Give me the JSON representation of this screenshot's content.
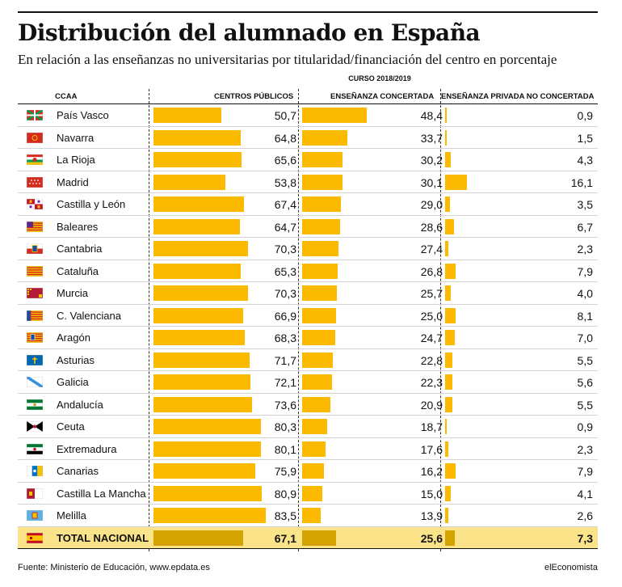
{
  "title": "Distribución del alumnado en España",
  "subtitle": "En relación a las enseñanzas no universitarias por titularidad/financiación del centro en porcentaje",
  "course": "CURSO 2018/2019",
  "footer": {
    "source": "Fuente: Ministerio de Educación, www.epdata.es",
    "brand": "elEconomista"
  },
  "colors": {
    "bar": "#fbba00",
    "total_bar": "#d4a300",
    "total_row": "#fbe38a"
  },
  "chart_data": {
    "type": "bar",
    "title": "Distribución del alumnado en España",
    "category_header": "CCAA",
    "categories": [
      "País Vasco",
      "Navarra",
      "La Rioja",
      "Madrid",
      "Castilla y León",
      "Baleares",
      "Cantabria",
      "Cataluña",
      "Murcia",
      "C. Valenciana",
      "Aragón",
      "Asturias",
      "Galicia",
      "Andalucía",
      "Ceuta",
      "Extremadura",
      "Canarias",
      "Castilla La Mancha",
      "Melilla",
      "TOTAL NACIONAL"
    ],
    "series": [
      {
        "name": "CENTROS PÚBLICOS",
        "values": [
          50.7,
          64.8,
          65.6,
          53.8,
          67.4,
          64.7,
          70.3,
          65.3,
          70.3,
          66.9,
          68.3,
          71.7,
          72.1,
          73.6,
          80.3,
          80.1,
          75.9,
          80.9,
          83.5,
          67.1
        ]
      },
      {
        "name": "ENSEÑANZA CONCERTADA",
        "values": [
          48.4,
          33.7,
          30.2,
          30.1,
          29.0,
          28.6,
          27.4,
          26.8,
          25.7,
          25.0,
          24.7,
          22.8,
          22.3,
          20.9,
          18.7,
          17.6,
          16.2,
          15.0,
          13.9,
          25.6
        ]
      },
      {
        "name": "ENSEÑANZA PRIVADA NO CONCERTADA",
        "values": [
          0.9,
          1.5,
          4.3,
          16.1,
          3.5,
          6.7,
          2.3,
          7.9,
          4.0,
          8.1,
          7.0,
          5.5,
          5.6,
          5.5,
          0.9,
          2.3,
          7.9,
          4.1,
          2.6,
          7.3
        ]
      }
    ],
    "value_labels": [
      [
        "50,7",
        "64,8",
        "65,6",
        "53,8",
        "67,4",
        "64,7",
        "70,3",
        "65,3",
        "70,3",
        "66,9",
        "68,3",
        "71,7",
        "72,1",
        "73,6",
        "80,3",
        "80,1",
        "75,9",
        "80,9",
        "83,5",
        "67,1"
      ],
      [
        "48,4",
        "33,7",
        "30,2",
        "30,1",
        "29,0",
        "28,6",
        "27,4",
        "26,8",
        "25,7",
        "25,0",
        "24,7",
        "22,8",
        "22,3",
        "20,9",
        "18,7",
        "17,6",
        "16,2",
        "15,0",
        "13,9",
        "25,6"
      ],
      [
        "0,9",
        "1,5",
        "4,3",
        "16,1",
        "3,5",
        "6,7",
        "2,3",
        "7,9",
        "4,0",
        "8,1",
        "7,0",
        "5,5",
        "5,6",
        "5,5",
        "0,9",
        "2,3",
        "7,9",
        "4,1",
        "2,6",
        "7,3"
      ]
    ],
    "flags": [
      "pais-vasco-flag-icon",
      "navarra-flag-icon",
      "la-rioja-flag-icon",
      "madrid-flag-icon",
      "castilla-y-leon-flag-icon",
      "baleares-flag-icon",
      "cantabria-flag-icon",
      "cataluna-flag-icon",
      "murcia-flag-icon",
      "c-valenciana-flag-icon",
      "aragon-flag-icon",
      "asturias-flag-icon",
      "galicia-flag-icon",
      "andalucia-flag-icon",
      "ceuta-flag-icon",
      "extremadura-flag-icon",
      "canarias-flag-icon",
      "castilla-la-mancha-flag-icon",
      "melilla-flag-icon",
      "spain-flag-icon"
    ]
  }
}
